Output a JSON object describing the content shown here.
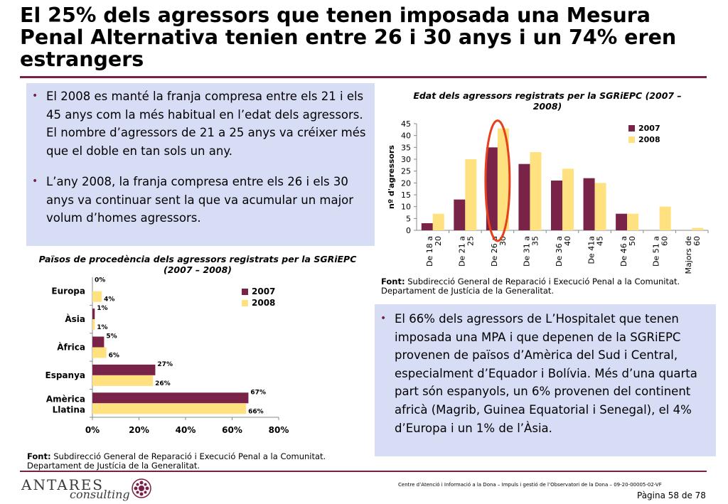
{
  "title": "El 25% dels agressors que tenen imposada una Mesura Penal Alternativa tenien entre 26 i 30 anys i un 74% eren estrangers",
  "box1": {
    "bullets": [
      "El 2008 es manté la franja compresa entre els 21 i els 45 anys com la més habitual en l’edat dels agressors. El nombre d’agressors de 21 a 25 anys va créixer més que el doble en tan sols un any.",
      "L’any 2008, la franja compresa entre els 26 i els 30 anys va continuar sent la que va acumular un major volum d’homes agressors."
    ]
  },
  "box2": {
    "bullets": [
      "El 66% dels agressors de L’Hospitalet que tenen imposada una MPA i que depenen de la SGRiEPC provenen de països d’Amèrica del Sud i Central, especialment d’Equador i Bolívia. Més d’una quarta part són espanyols, un 6% provenen del continent africà (Magrib, Guinea Equatorial i Senegal), el 4% d’Europa i un 1% de l’Àsia."
    ]
  },
  "font_label": "Font:",
  "font_source": "Subdirecció General de Reparació i Execució Penal a la Comunitat. Departament de Justícia de la Generalitat.",
  "footer": {
    "brand": "ANTARES",
    "brand_sub": "consulting",
    "text": "Centre d’Atenció i Informació a la Dona – Impuls i gestió de l’Observatori de la Dona – 09-20-00005-02-VF",
    "page": "Pàgina 58 de 78"
  },
  "colors": {
    "series_2007": "#7a2348",
    "series_2008": "#ffe17f",
    "accent": "#7a1f45",
    "highlight": "#e8401c"
  },
  "chart_data": [
    {
      "type": "bar",
      "title": "Edat dels agressors registrats per la SGRiEPC (2007 – 2008)",
      "ylabel": "nº d'agressors",
      "xlabel": "",
      "ylim": [
        0,
        45
      ],
      "yticks": [
        "0",
        "5",
        "10",
        "15",
        "20",
        "25",
        "30",
        "35",
        "40",
        "45"
      ],
      "categories": [
        "De 18 a 20",
        "De 21 a 25",
        "De 26 a 30",
        "De 31 a 35",
        "De 36 a 40",
        "De 41a 45",
        "De 46 a 50",
        "De 51 a 60",
        "Majors de 60"
      ],
      "series": [
        {
          "name": "2007",
          "values": [
            3,
            13,
            35,
            28,
            21,
            22,
            7,
            0,
            0
          ]
        },
        {
          "name": "2008",
          "values": [
            7,
            30,
            43,
            33,
            26,
            20,
            7,
            10,
            1
          ]
        }
      ],
      "legend": "top-right",
      "highlighted_category": "De 26 a 30"
    },
    {
      "type": "bar",
      "orientation": "horizontal",
      "title": "Països de procedència dels agressors registrats per la SGRiEPC (2007 – 2008)",
      "xlim": [
        0,
        80
      ],
      "xticks": [
        "0%",
        "20%",
        "40%",
        "60%",
        "80%"
      ],
      "categories": [
        "Europa",
        "Àsia",
        "Àfrica",
        "Espanya",
        "Amèrica Llatina"
      ],
      "series": [
        {
          "name": "2007",
          "values": [
            0,
            1,
            5,
            27,
            67
          ],
          "labels": [
            "0%",
            "1%",
            "5%",
            "27%",
            "67%"
          ]
        },
        {
          "name": "2008",
          "values": [
            4,
            1,
            6,
            26,
            66
          ],
          "labels": [
            "4%",
            "1%",
            "6%",
            "26%",
            "66%"
          ]
        }
      ],
      "legend": "top-right"
    }
  ]
}
